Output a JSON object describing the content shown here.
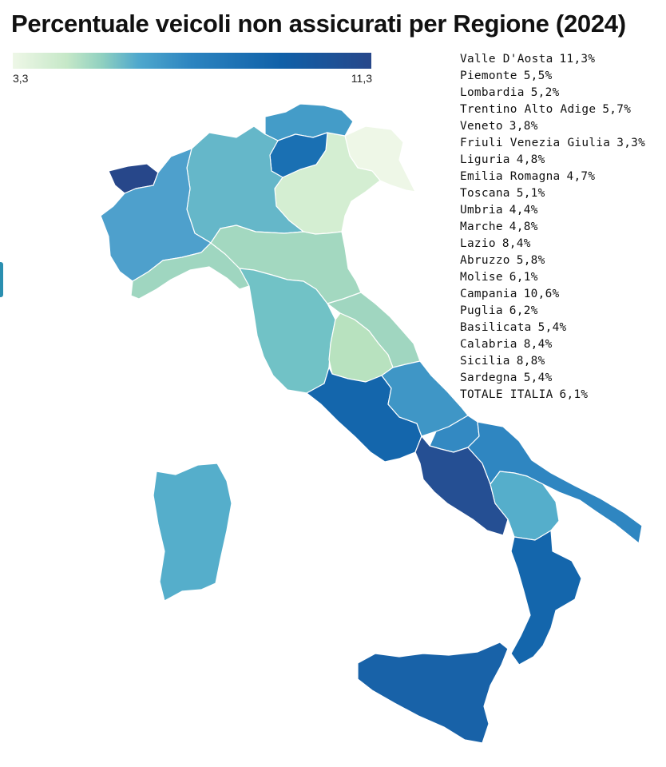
{
  "title": "Percentuale veicoli non assicurati per Regione (2024)",
  "color_scale": {
    "min_label": "3,3",
    "max_label": "11,3",
    "min": 3.3,
    "max": 11.3,
    "colors": [
      "#eef7e7",
      "#c6e8c8",
      "#8fd0c0",
      "#4fa8cd",
      "#2c84c0",
      "#1060a8",
      "#27478a"
    ]
  },
  "regions": [
    {
      "id": "valle-daosta",
      "name": "Valle D'Aosta",
      "value_label": "11,3%",
      "value": 11.3,
      "color": "#27478a"
    },
    {
      "id": "piemonte",
      "name": "Piemonte",
      "value_label": "5,5%",
      "value": 5.5,
      "color": "#4ea0cc"
    },
    {
      "id": "lombardia",
      "name": "Lombardia",
      "value_label": "5,2%",
      "value": 5.2,
      "color": "#65b7c9"
    },
    {
      "id": "trentino",
      "name": "Trentino Alto Adige",
      "value_label": "5,7%",
      "value": 5.7,
      "color": "#449cc8"
    },
    {
      "id": "trento",
      "name": "",
      "value_label": "",
      "value": 5.7,
      "color": "#1a70b3"
    },
    {
      "id": "veneto",
      "name": "Veneto",
      "value_label": "3,8%",
      "value": 3.8,
      "color": "#d4eed2"
    },
    {
      "id": "friuli",
      "name": "Friuli Venezia Giulia",
      "value_label": "3,3%",
      "value": 3.3,
      "color": "#eef7e7"
    },
    {
      "id": "liguria",
      "name": "Liguria",
      "value_label": "4,8%",
      "value": 4.8,
      "color": "#9fd6c0"
    },
    {
      "id": "emilia-romagna",
      "name": "Emilia Romagna",
      "value_label": "4,7%",
      "value": 4.7,
      "color": "#a3d8c0"
    },
    {
      "id": "toscana",
      "name": "Toscana",
      "value_label": "5,1%",
      "value": 5.1,
      "color": "#71c2c6"
    },
    {
      "id": "umbria",
      "name": "Umbria",
      "value_label": "4,4%",
      "value": 4.4,
      "color": "#b8e2bf"
    },
    {
      "id": "marche",
      "name": "Marche",
      "value_label": "4,8%",
      "value": 4.8,
      "color": "#a0d6c0"
    },
    {
      "id": "lazio",
      "name": "Lazio",
      "value_label": "8,4%",
      "value": 8.4,
      "color": "#1466ac"
    },
    {
      "id": "abruzzo",
      "name": "Abruzzo",
      "value_label": "5,8%",
      "value": 5.8,
      "color": "#3f96c6"
    },
    {
      "id": "molise",
      "name": "Molise",
      "value_label": "6,1%",
      "value": 6.1,
      "color": "#3389c2"
    },
    {
      "id": "campania",
      "name": "Campania",
      "value_label": "10,6%",
      "value": 10.6,
      "color": "#254f93"
    },
    {
      "id": "puglia",
      "name": "Puglia",
      "value_label": "6,2%",
      "value": 6.2,
      "color": "#2f86c1"
    },
    {
      "id": "basilicata",
      "name": "Basilicata",
      "value_label": "5,4%",
      "value": 5.4,
      "color": "#55aecb"
    },
    {
      "id": "calabria",
      "name": "Calabria",
      "value_label": "8,4%",
      "value": 8.4,
      "color": "#1466ac"
    },
    {
      "id": "sicilia",
      "name": "Sicilia",
      "value_label": "8,8%",
      "value": 8.8,
      "color": "#1862a8"
    },
    {
      "id": "sardegna",
      "name": "Sardegna",
      "value_label": "5,4%",
      "value": 5.4,
      "color": "#55aecb"
    }
  ],
  "total": {
    "name": "TOTALE ITALIA",
    "value_label": "6,1%",
    "value": 6.1
  }
}
